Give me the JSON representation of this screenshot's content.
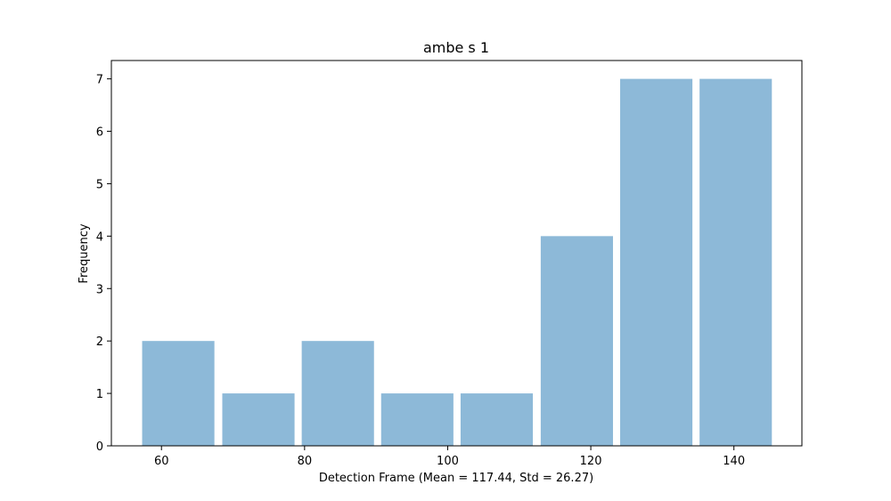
{
  "chart_data": {
    "type": "bar",
    "title": "ambe s 1",
    "xlabel": "Detection Frame (Mean = 117.44, Std = 26.27)",
    "ylabel": "Frequency",
    "bins": [
      {
        "start": 57.3,
        "end": 67.4,
        "value": 2
      },
      {
        "start": 68.5,
        "end": 78.6,
        "value": 1
      },
      {
        "start": 79.6,
        "end": 89.7,
        "value": 2
      },
      {
        "start": 90.7,
        "end": 100.8,
        "value": 1
      },
      {
        "start": 101.8,
        "end": 111.9,
        "value": 1
      },
      {
        "start": 113.0,
        "end": 123.1,
        "value": 4
      },
      {
        "start": 124.1,
        "end": 134.2,
        "value": 7
      },
      {
        "start": 135.2,
        "end": 145.3,
        "value": 7
      }
    ],
    "xlim": [
      53.0,
      149.5
    ],
    "ylim": [
      0,
      7.35
    ],
    "xticks": [
      60,
      80,
      100,
      120,
      140
    ],
    "yticks": [
      0,
      1,
      2,
      3,
      4,
      5,
      6,
      7
    ],
    "bar_color": "#8db9d8",
    "grid": false,
    "legend": "none"
  }
}
